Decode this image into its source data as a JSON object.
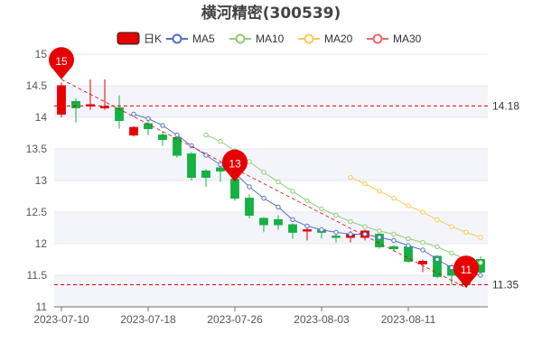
{
  "chart_data": {
    "type": "candlestick",
    "title": "横河精密(300539)",
    "legend": [
      "日K",
      "MA5",
      "MA10",
      "MA20",
      "MA30"
    ],
    "legend_position": "top",
    "colors": {
      "up": "#e60000",
      "down": "#14b143",
      "ma5": "#5470c6",
      "ma10": "#91cc75",
      "ma20": "#fac858",
      "ma30": "#ee6666",
      "band_light": "#f4f5fb",
      "band_white": "#ffffff"
    },
    "ylim": [
      11,
      15
    ],
    "yticks": [
      "11",
      "11.5",
      "12",
      "12.5",
      "13",
      "13.5",
      "14",
      "14.5",
      "15"
    ],
    "x_labels": [
      "2023-07-10",
      "2023-07-18",
      "2023-07-26",
      "2023-08-03",
      "2023-08-11"
    ],
    "x_label_indices": [
      0,
      6,
      12,
      18,
      24
    ],
    "dates": [
      "2023-07-10",
      "2023-07-11",
      "2023-07-12",
      "2023-07-13",
      "2023-07-14",
      "2023-07-17",
      "2023-07-18",
      "2023-07-19",
      "2023-07-20",
      "2023-07-21",
      "2023-07-24",
      "2023-07-25",
      "2023-07-26",
      "2023-07-27",
      "2023-07-28",
      "2023-07-31",
      "2023-08-01",
      "2023-08-02",
      "2023-08-03",
      "2023-08-04",
      "2023-08-07",
      "2023-08-08",
      "2023-08-09",
      "2023-08-10",
      "2023-08-11",
      "2023-08-14",
      "2023-08-15",
      "2023-08-16",
      "2023-08-17",
      "2023-08-18"
    ],
    "ohlc": [
      [
        14.05,
        14.5,
        14.0,
        14.55
      ],
      [
        14.25,
        14.15,
        13.92,
        14.3
      ],
      [
        14.18,
        14.2,
        14.12,
        14.6
      ],
      [
        14.15,
        14.17,
        14.12,
        14.6
      ],
      [
        14.15,
        13.95,
        13.82,
        14.35
      ],
      [
        13.72,
        13.84,
        13.7,
        13.86
      ],
      [
        13.9,
        13.82,
        13.72,
        14.0
      ],
      [
        13.72,
        13.65,
        13.55,
        13.78
      ],
      [
        13.68,
        13.4,
        13.36,
        13.72
      ],
      [
        13.42,
        13.05,
        13.0,
        13.45
      ],
      [
        13.15,
        13.05,
        12.9,
        13.18
      ],
      [
        13.2,
        13.15,
        12.98,
        13.22
      ],
      [
        13.02,
        12.72,
        12.68,
        13.08
      ],
      [
        12.72,
        12.45,
        12.4,
        12.78
      ],
      [
        12.4,
        12.3,
        12.18,
        12.42
      ],
      [
        12.38,
        12.3,
        12.22,
        12.45
      ],
      [
        12.3,
        12.18,
        12.08,
        12.32
      ],
      [
        12.2,
        12.22,
        12.05,
        12.25
      ],
      [
        12.22,
        12.18,
        12.08,
        12.25
      ],
      [
        12.12,
        12.1,
        12.02,
        12.18
      ],
      [
        12.1,
        12.15,
        12.02,
        12.2
      ],
      [
        12.1,
        12.2,
        12.05,
        12.22
      ],
      [
        12.15,
        11.95,
        11.92,
        12.2
      ],
      [
        11.95,
        11.92,
        11.88,
        11.98
      ],
      [
        11.95,
        11.72,
        11.7,
        11.98
      ],
      [
        11.68,
        11.72,
        11.55,
        11.75
      ],
      [
        11.8,
        11.48,
        11.45,
        11.82
      ],
      [
        11.65,
        11.5,
        11.35,
        11.68
      ],
      [
        11.5,
        11.35,
        11.3,
        11.58
      ],
      [
        11.75,
        11.55,
        11.5,
        11.8
      ]
    ],
    "ma5": [
      null,
      null,
      null,
      null,
      null,
      14.05,
      13.98,
      13.87,
      13.72,
      13.55,
      13.4,
      13.25,
      13.12,
      12.9,
      12.72,
      12.58,
      12.38,
      12.28,
      12.22,
      12.18,
      12.15,
      12.15,
      12.1,
      12.05,
      11.97,
      11.9,
      11.75,
      11.62,
      11.52,
      11.5
    ],
    "ma10": [
      null,
      null,
      null,
      null,
      null,
      null,
      null,
      null,
      null,
      null,
      13.72,
      13.62,
      13.47,
      13.3,
      13.13,
      12.98,
      12.83,
      12.68,
      12.55,
      12.45,
      12.35,
      12.27,
      12.2,
      12.15,
      12.08,
      12.02,
      11.95,
      11.85,
      11.75,
      11.7
    ],
    "ma20": [
      null,
      null,
      null,
      null,
      null,
      null,
      null,
      null,
      null,
      null,
      null,
      null,
      null,
      null,
      null,
      null,
      null,
      null,
      null,
      null,
      13.05,
      12.95,
      12.83,
      12.72,
      12.6,
      12.5,
      12.38,
      12.27,
      12.18,
      12.1
    ],
    "ma30": [],
    "annotations": [
      {
        "label": "15",
        "index": 0,
        "value": 14.6
      },
      {
        "label": "13",
        "index": 12,
        "value": 12.98
      },
      {
        "label": "11",
        "index": 28,
        "value": 11.3
      }
    ],
    "ref_lines": [
      {
        "label": "14.18",
        "value": 14.18
      },
      {
        "label": "11.35",
        "value": 11.35
      }
    ]
  }
}
